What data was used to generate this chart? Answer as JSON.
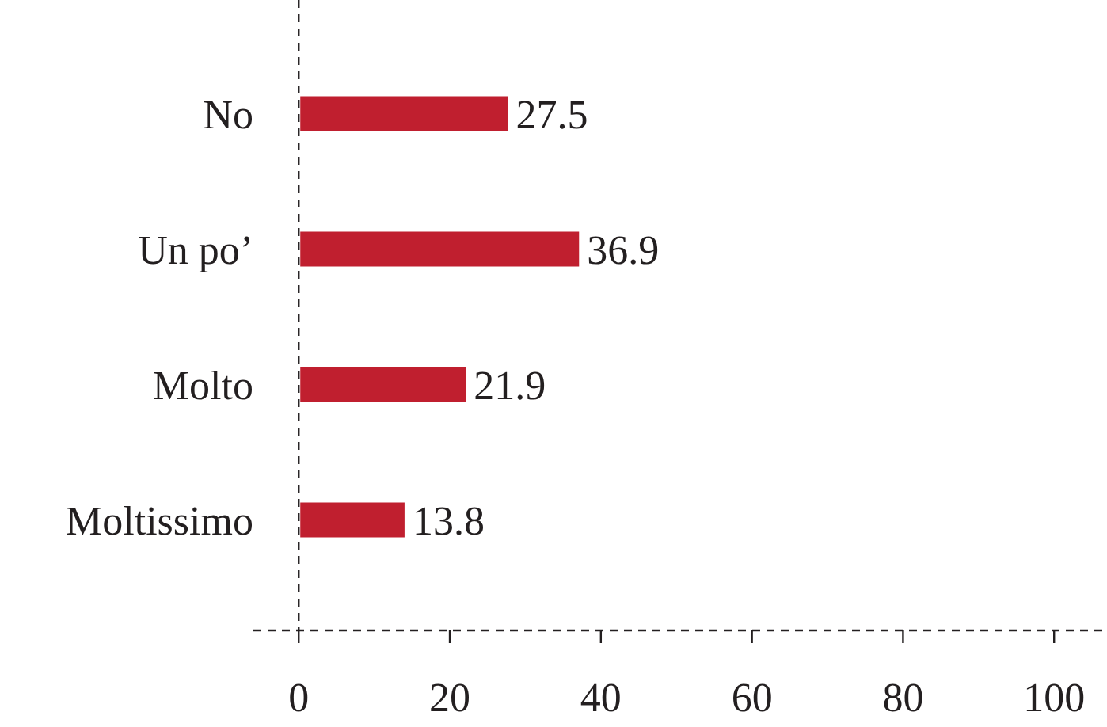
{
  "chart_data": {
    "type": "bar",
    "orientation": "horizontal",
    "categories": [
      "No",
      "Un po’",
      "Molto",
      "Moltissimo"
    ],
    "values": [
      27.5,
      36.9,
      21.9,
      13.8
    ],
    "color": "#c01f2f",
    "xlim": [
      -6,
      107
    ],
    "xticks": [
      0,
      20,
      40,
      60,
      80,
      100
    ],
    "data_labels": true
  }
}
